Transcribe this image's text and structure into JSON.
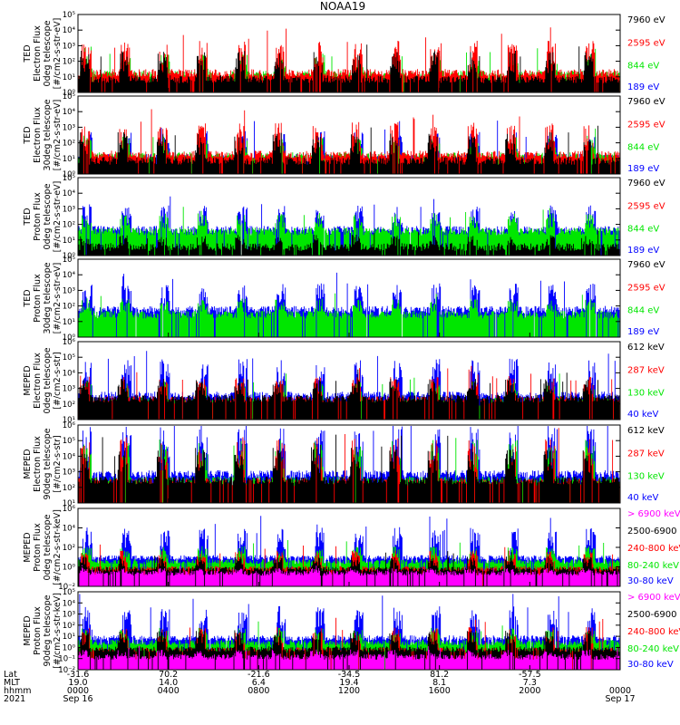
{
  "title": "NOAA19",
  "colors": {
    "black": "#000000",
    "red": "#ff0000",
    "green": "#00e600",
    "blue": "#0000ff",
    "magenta": "#ff00ff"
  },
  "chart_data": [
    {
      "type": "line",
      "ylabel": [
        "TED",
        "Electron Flux",
        "0deg telescope",
        "[#/cm2-s-str-eV]"
      ],
      "ylog": [
        0,
        5
      ],
      "yticks": [
        "10⁰",
        "10¹",
        "10²",
        "10³",
        "10⁴",
        "10⁵"
      ],
      "legend": [
        {
          "label": "7960 eV",
          "color": "black"
        },
        {
          "label": "2595 eV",
          "color": "red"
        },
        {
          "label": "844 eV",
          "color": "green"
        },
        {
          "label": "189 eV",
          "color": "blue"
        }
      ],
      "series_levels": [
        {
          "color": "green",
          "base": 0.9,
          "amp": 1.2
        },
        {
          "color": "red",
          "base": 1.0,
          "amp": 1.8
        },
        {
          "color": "black",
          "base": 0.6,
          "amp": 1.6
        }
      ]
    },
    {
      "type": "line",
      "ylabel": [
        "TED",
        "Electron Flux",
        "30deg telescope",
        "[#/cm2-s-str-eV]"
      ],
      "ylog": [
        0,
        5
      ],
      "yticks": [
        "10⁰",
        "10¹",
        "10²",
        "10³",
        "10⁴",
        "10⁵"
      ],
      "legend": [
        {
          "label": "7960 eV",
          "color": "black"
        },
        {
          "label": "2595 eV",
          "color": "red"
        },
        {
          "label": "844 eV",
          "color": "green"
        },
        {
          "label": "189 eV",
          "color": "blue"
        }
      ],
      "series_levels": [
        {
          "color": "blue",
          "base": 0.8,
          "amp": 1.5
        },
        {
          "color": "green",
          "base": 0.9,
          "amp": 1.2
        },
        {
          "color": "red",
          "base": 1.0,
          "amp": 1.8
        },
        {
          "color": "black",
          "base": 0.6,
          "amp": 1.6
        }
      ]
    },
    {
      "type": "line",
      "ylabel": [
        "TED",
        "Proton Flux",
        "0deg telescope",
        "[#/cm2-s-str-eV]"
      ],
      "ylog": [
        0,
        5
      ],
      "yticks": [
        "10⁰",
        "10¹",
        "10²",
        "10³",
        "10⁴",
        "10⁵"
      ],
      "legend": [
        {
          "label": "7960 eV",
          "color": "black"
        },
        {
          "label": "2595 eV",
          "color": "red"
        },
        {
          "label": "844 eV",
          "color": "green"
        },
        {
          "label": "189 eV",
          "color": "blue"
        }
      ],
      "series_levels": [
        {
          "color": "blue",
          "base": 1.4,
          "amp": 1.4
        },
        {
          "color": "green",
          "base": 1.3,
          "amp": 1.1
        },
        {
          "color": "black",
          "base": 0.3,
          "amp": 0.8
        }
      ]
    },
    {
      "type": "line",
      "ylabel": [
        "TED",
        "Proton Flux",
        "30deg telescope",
        "[#/cm2-s-str-eV]"
      ],
      "ylog": [
        0,
        5
      ],
      "yticks": [
        "10⁰",
        "10¹",
        "10²",
        "10³",
        "10⁴",
        "10⁵"
      ],
      "legend": [
        {
          "label": "7960 eV",
          "color": "black"
        },
        {
          "label": "2595 eV",
          "color": "red"
        },
        {
          "label": "844 eV",
          "color": "green"
        },
        {
          "label": "189 eV",
          "color": "blue"
        }
      ],
      "series_levels": [
        {
          "color": "blue",
          "base": 1.5,
          "amp": 1.5
        },
        {
          "color": "green",
          "base": 1.2,
          "amp": 1.0
        }
      ]
    },
    {
      "type": "line",
      "ylabel": [
        "MEPED",
        "Electron Flux",
        "0deg telescope",
        "[#/cm2-s-str]"
      ],
      "ylog": [
        1,
        6
      ],
      "yticks": [
        "10¹",
        "10²",
        "10³",
        "10⁴",
        "10⁵",
        "10⁶"
      ],
      "legend": [
        {
          "label": "612 keV",
          "color": "black"
        },
        {
          "label": "287 keV",
          "color": "red"
        },
        {
          "label": "130 keV",
          "color": "green"
        },
        {
          "label": "40 keV",
          "color": "blue"
        }
      ],
      "series_levels": [
        {
          "color": "blue",
          "base": 2.3,
          "amp": 2.0
        },
        {
          "color": "green",
          "base": 1.9,
          "amp": 1.2
        },
        {
          "color": "red",
          "base": 2.0,
          "amp": 1.4
        },
        {
          "color": "black",
          "base": 2.1,
          "amp": 1.2
        }
      ]
    },
    {
      "type": "line",
      "ylabel": [
        "MEPED",
        "Electron Flux",
        "90deg telescope",
        "[#/cm2-s-str]"
      ],
      "ylog": [
        1,
        6
      ],
      "yticks": [
        "10¹",
        "10²",
        "10³",
        "10⁴",
        "10⁵",
        "10⁶"
      ],
      "legend": [
        {
          "label": "612 keV",
          "color": "black"
        },
        {
          "label": "287 keV",
          "color": "red"
        },
        {
          "label": "130 keV",
          "color": "green"
        },
        {
          "label": "40 keV",
          "color": "blue"
        }
      ],
      "series_levels": [
        {
          "color": "blue",
          "base": 2.6,
          "amp": 2.6
        },
        {
          "color": "green",
          "base": 2.2,
          "amp": 2.2
        },
        {
          "color": "red",
          "base": 2.1,
          "amp": 2.4
        },
        {
          "color": "black",
          "base": 2.2,
          "amp": 1.8
        }
      ]
    },
    {
      "type": "line",
      "ylabel": [
        "MEPED",
        "Proton Flux",
        "0deg telescope",
        "[#/cm2-s-str-keV]"
      ],
      "ylog": [
        -2,
        6
      ],
      "yticks": [
        "10⁻²",
        "10⁰",
        "10²",
        "10⁴",
        "10⁶"
      ],
      "legend": [
        {
          "label": "> 6900 keV",
          "color": "magenta"
        },
        {
          "label": "2500-6900",
          "color": "black"
        },
        {
          "label": "240-800 keV",
          "color": "red"
        },
        {
          "label": "80-240 keV",
          "color": "green"
        },
        {
          "label": "30-80 keV",
          "color": "blue"
        }
      ],
      "series_levels": [
        {
          "color": "blue",
          "base": 0.7,
          "amp": 2.6
        },
        {
          "color": "green",
          "base": 0.3,
          "amp": 1.4
        },
        {
          "color": "red",
          "base": -0.4,
          "amp": 1.6
        },
        {
          "color": "black",
          "base": -0.5,
          "amp": 1.2
        },
        {
          "color": "magenta",
          "base": -0.9,
          "amp": 0.6
        }
      ]
    },
    {
      "type": "line",
      "ylabel": [
        "MEPED",
        "Proton Flux",
        "90deg telescope",
        "[#/cm2-s-str-keV]"
      ],
      "ylog": [
        -2,
        5
      ],
      "yticks": [
        "10⁻²",
        "10⁻¹",
        "10⁰",
        "10¹",
        "10²",
        "10³",
        "10⁴",
        "10⁵"
      ],
      "legend": [
        {
          "label": "> 6900 keV",
          "color": "magenta"
        },
        {
          "label": "2500-6900",
          "color": "black"
        },
        {
          "label": "240-800 keV",
          "color": "red"
        },
        {
          "label": "80-240 keV",
          "color": "green"
        },
        {
          "label": "30-80 keV",
          "color": "blue"
        }
      ],
      "series_levels": [
        {
          "color": "blue",
          "base": 0.6,
          "amp": 2.4
        },
        {
          "color": "green",
          "base": 0.2,
          "amp": 1.2
        },
        {
          "color": "red",
          "base": -0.5,
          "amp": 1.8
        },
        {
          "color": "black",
          "base": -0.4,
          "amp": 1.5
        },
        {
          "color": "magenta",
          "base": -1.1,
          "amp": 0.7
        }
      ]
    }
  ],
  "x_axis": {
    "row_labels": [
      "Lat",
      "MLT",
      "hhmm",
      "2021"
    ],
    "ticks": [
      {
        "lat": "-31.6",
        "mlt": "19.0",
        "time": "0000",
        "date": "Sep 16"
      },
      {
        "lat": "70.2",
        "mlt": "14.0",
        "time": "0400",
        "date": ""
      },
      {
        "lat": "-21.6",
        "mlt": "6.4",
        "time": "0800",
        "date": ""
      },
      {
        "lat": "-34.5",
        "mlt": "19.4",
        "time": "1200",
        "date": ""
      },
      {
        "lat": "81.2",
        "mlt": "8.1",
        "time": "1600",
        "date": ""
      },
      {
        "lat": "-57.5",
        "mlt": "7.3",
        "time": "2000",
        "date": ""
      },
      {
        "lat": "",
        "mlt": "",
        "time": "0000",
        "date": "Sep 17"
      }
    ]
  }
}
